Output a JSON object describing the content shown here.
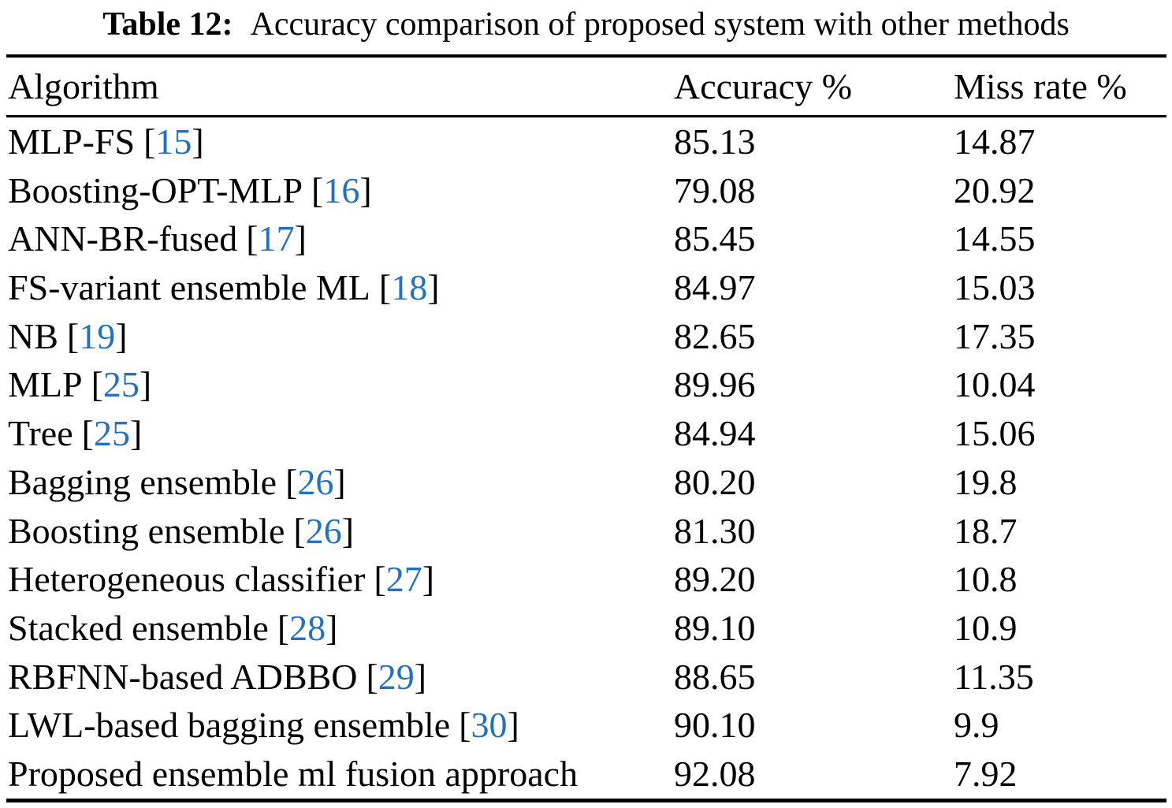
{
  "caption": {
    "label": "Table 12:",
    "text": "Accuracy comparison of proposed system with other methods"
  },
  "punctuation": {
    "bracket_open": "[",
    "bracket_close": "]"
  },
  "colors": {
    "citation_blue": "#2171c2",
    "text_black": "#000000",
    "rule_black": "#000000"
  },
  "table": {
    "headers": [
      {
        "label": "Algorithm"
      },
      {
        "label": "Accuracy %"
      },
      {
        "label": "Miss rate %"
      }
    ],
    "rows": [
      {
        "name": "MLP-FS",
        "citation": "15",
        "accuracy": "85.13",
        "miss_rate": "14.87"
      },
      {
        "name": "Boosting-OPT-MLP",
        "citation": "16",
        "accuracy": "79.08",
        "miss_rate": "20.92"
      },
      {
        "name": "ANN-BR-fused",
        "citation": "17",
        "accuracy": "85.45",
        "miss_rate": "14.55"
      },
      {
        "name": "FS-variant ensemble ML",
        "citation": "18",
        "accuracy": "84.97",
        "miss_rate": "15.03"
      },
      {
        "name": "NB",
        "citation": "19",
        "accuracy": "82.65",
        "miss_rate": "17.35"
      },
      {
        "name": "MLP",
        "citation": "25",
        "accuracy": "89.96",
        "miss_rate": "10.04"
      },
      {
        "name": "Tree",
        "citation": "25",
        "accuracy": "84.94",
        "miss_rate": "15.06"
      },
      {
        "name": "Bagging ensemble",
        "citation": "26",
        "accuracy": "80.20",
        "miss_rate": "19.8"
      },
      {
        "name": "Boosting ensemble",
        "citation": "26",
        "accuracy": "81.30",
        "miss_rate": "18.7"
      },
      {
        "name": "Heterogeneous classifier",
        "citation": "27",
        "accuracy": "89.20",
        "miss_rate": "10.8"
      },
      {
        "name": "Stacked ensemble",
        "citation": "28",
        "accuracy": "89.10",
        "miss_rate": "10.9"
      },
      {
        "name": "RBFNN-based ADBBO",
        "citation": "29",
        "accuracy": "88.65",
        "miss_rate": "11.35"
      },
      {
        "name": "LWL-based bagging ensemble",
        "citation": "30",
        "accuracy": "90.10",
        "miss_rate": "9.9"
      },
      {
        "name": "Proposed ensemble ml fusion approach",
        "citation": null,
        "accuracy": "92.08",
        "miss_rate": "7.92"
      }
    ]
  },
  "chart_data": {
    "type": "table",
    "title": "Table 12: Accuracy comparison of proposed system with other methods",
    "columns": [
      "Algorithm",
      "Accuracy %",
      "Miss rate %"
    ],
    "rows": [
      [
        "MLP-FS [15]",
        85.13,
        14.87
      ],
      [
        "Boosting-OPT-MLP [16]",
        79.08,
        20.92
      ],
      [
        "ANN-BR-fused [17]",
        85.45,
        14.55
      ],
      [
        "FS-variant ensemble ML [18]",
        84.97,
        15.03
      ],
      [
        "NB [19]",
        82.65,
        17.35
      ],
      [
        "MLP [25]",
        89.96,
        10.04
      ],
      [
        "Tree [25]",
        84.94,
        15.06
      ],
      [
        "Bagging ensemble [26]",
        80.2,
        19.8
      ],
      [
        "Boosting ensemble [26]",
        81.3,
        18.7
      ],
      [
        "Heterogeneous classifier [27]",
        89.2,
        10.8
      ],
      [
        "Stacked ensemble [28]",
        89.1,
        10.9
      ],
      [
        "RBFNN-based ADBBO [29]",
        88.65,
        11.35
      ],
      [
        "LWL-based bagging ensemble [30]",
        90.1,
        9.9
      ],
      [
        "Proposed ensemble ml fusion approach",
        92.08,
        7.92
      ]
    ]
  }
}
